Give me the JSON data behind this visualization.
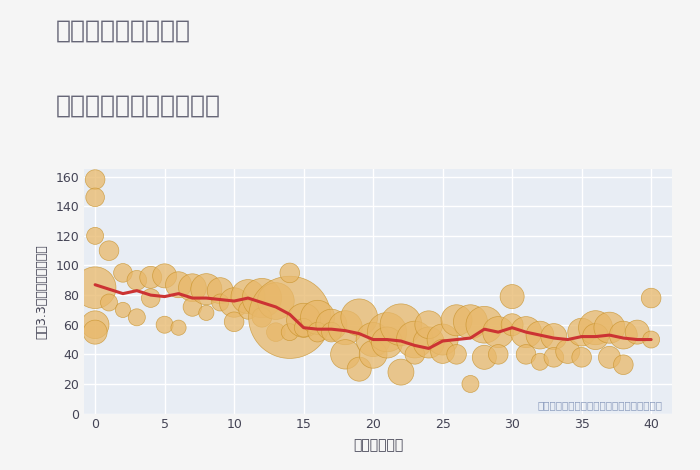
{
  "title_line1": "埼玉県入間市東町の",
  "title_line2": "築年数別中古戸建て価格",
  "xlabel": "築年数（年）",
  "ylabel": "坪（3.3㎡）単価（万円）",
  "annotation": "円の大きさは、取引のあった物件面積を示す",
  "bg_color": "#f5f5f5",
  "plot_bg_color": "#e8edf4",
  "grid_color": "#ffffff",
  "bubble_color": "#E8B86A",
  "bubble_edge_color": "#C8922A",
  "line_color": "#cc3333",
  "title_color": "#666677",
  "xlabel_color": "#444455",
  "ylabel_color": "#444455",
  "annotation_color": "#8899bb",
  "xlim": [
    -0.8,
    41.5
  ],
  "ylim": [
    0,
    165
  ],
  "yticks": [
    0,
    20,
    40,
    60,
    80,
    100,
    120,
    140,
    160
  ],
  "xticks": [
    0,
    5,
    10,
    15,
    20,
    25,
    30,
    35,
    40
  ],
  "scatter_x": [
    0,
    0,
    0,
    0,
    0,
    0,
    1,
    1,
    2,
    2,
    3,
    3,
    4,
    4,
    5,
    5,
    6,
    6,
    7,
    7,
    8,
    8,
    9,
    9,
    10,
    10,
    11,
    11,
    12,
    12,
    13,
    13,
    14,
    14,
    14,
    15,
    15,
    16,
    16,
    17,
    17,
    18,
    18,
    19,
    19,
    20,
    20,
    21,
    21,
    22,
    22,
    23,
    23,
    24,
    24,
    25,
    25,
    26,
    26,
    27,
    27,
    28,
    28,
    29,
    29,
    30,
    30,
    31,
    31,
    32,
    32,
    33,
    33,
    34,
    35,
    35,
    36,
    36,
    37,
    37,
    38,
    38,
    39,
    40,
    40
  ],
  "scatter_y": [
    158,
    146,
    120,
    85,
    60,
    55,
    110,
    75,
    95,
    70,
    90,
    65,
    92,
    78,
    93,
    60,
    87,
    58,
    85,
    72,
    84,
    68,
    83,
    75,
    75,
    62,
    79,
    70,
    78,
    65,
    76,
    55,
    65,
    95,
    55,
    63,
    58,
    65,
    55,
    60,
    55,
    58,
    40,
    65,
    30,
    50,
    40,
    55,
    48,
    60,
    28,
    50,
    40,
    48,
    60,
    50,
    42,
    63,
    40,
    62,
    20,
    60,
    38,
    55,
    40,
    79,
    60,
    55,
    40,
    53,
    35,
    52,
    38,
    42,
    55,
    38,
    58,
    52,
    58,
    38,
    53,
    33,
    55,
    78,
    50
  ],
  "scatter_size": [
    200,
    180,
    150,
    900,
    400,
    300,
    200,
    150,
    180,
    120,
    200,
    150,
    250,
    180,
    300,
    150,
    350,
    120,
    400,
    180,
    500,
    120,
    350,
    150,
    450,
    200,
    600,
    180,
    800,
    200,
    700,
    180,
    3500,
    200,
    150,
    600,
    180,
    600,
    200,
    500,
    200,
    600,
    450,
    700,
    300,
    600,
    400,
    800,
    500,
    900,
    350,
    700,
    200,
    500,
    400,
    500,
    300,
    500,
    200,
    600,
    150,
    700,
    300,
    500,
    200,
    300,
    250,
    500,
    200,
    400,
    150,
    350,
    200,
    300,
    400,
    200,
    600,
    350,
    500,
    250,
    400,
    200,
    300,
    200,
    150
  ],
  "line_x": [
    0,
    1,
    2,
    3,
    4,
    5,
    6,
    7,
    8,
    9,
    10,
    11,
    12,
    13,
    14,
    15,
    16,
    17,
    18,
    19,
    20,
    21,
    22,
    23,
    24,
    25,
    26,
    27,
    28,
    29,
    30,
    31,
    32,
    33,
    34,
    35,
    36,
    37,
    38,
    39,
    40
  ],
  "line_y": [
    87,
    84,
    81,
    83,
    80,
    79,
    81,
    78,
    78,
    77,
    76,
    78,
    75,
    72,
    67,
    58,
    57,
    57,
    56,
    54,
    50,
    50,
    49,
    46,
    44,
    49,
    50,
    51,
    57,
    55,
    58,
    55,
    53,
    51,
    50,
    52,
    52,
    53,
    51,
    50,
    50
  ]
}
